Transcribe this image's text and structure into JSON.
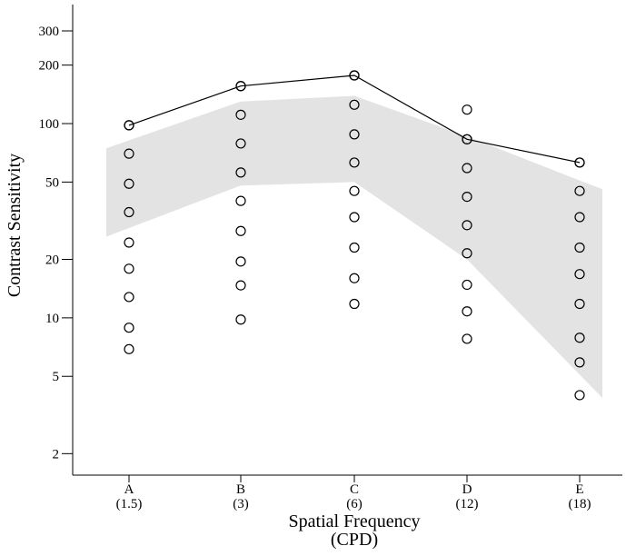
{
  "chart_data": {
    "type": "line",
    "ylabel": "Contrast Sensitivity",
    "xlabel": [
      "Spatial Frequency",
      "(CPD)"
    ],
    "categories": [
      "A",
      "B",
      "C",
      "D",
      "E"
    ],
    "category_sublabels": [
      "(1.5)",
      "(3)",
      "(6)",
      "(12)",
      "(18)"
    ],
    "log_y": true,
    "ylim": [
      1.55,
      410
    ],
    "yticks": [
      2,
      5,
      10,
      20,
      50,
      100,
      200,
      300
    ],
    "points": [
      [
        98,
        70,
        49,
        35,
        24.4,
        17.9,
        12.8,
        8.9,
        6.9
      ],
      [
        156,
        111,
        79,
        56,
        40,
        28,
        19.5,
        14.7,
        9.8
      ],
      [
        177,
        125,
        88,
        63,
        45,
        33,
        23,
        16,
        11.8
      ],
      [
        118,
        83,
        59,
        42,
        30,
        21.5,
        14.8,
        10.8,
        7.8
      ],
      [
        63,
        45,
        33,
        23,
        16.8,
        11.8,
        7.9,
        5.9,
        4.0
      ]
    ],
    "line_values": [
      98,
      156,
      177,
      83,
      63
    ],
    "line_color": "#000000",
    "band_upper": [
      82,
      130,
      139,
      86,
      51
    ],
    "band_lower": [
      29,
      48,
      50,
      20,
      5.1
    ],
    "band_color": "#e3e3e3"
  }
}
